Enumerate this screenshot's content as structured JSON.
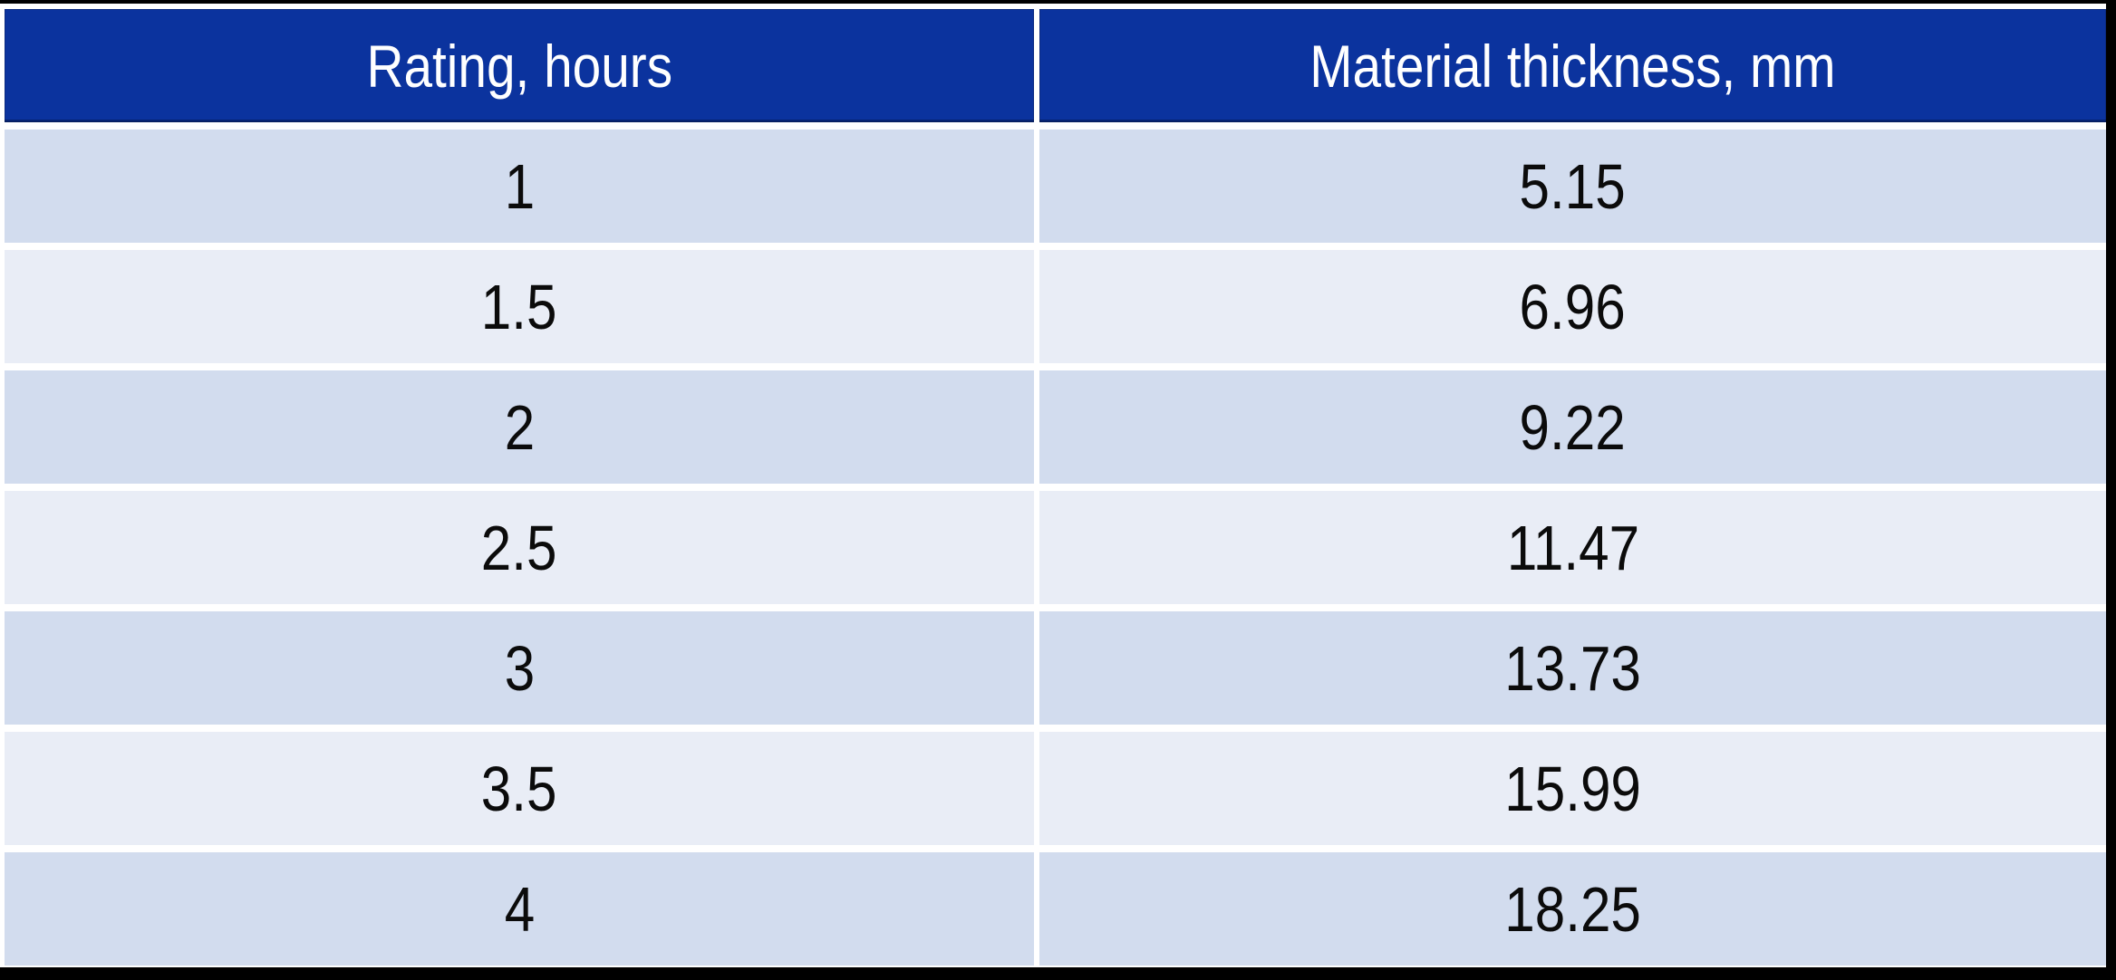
{
  "table": {
    "columns": [
      {
        "id": "rating",
        "label": "Rating, hours"
      },
      {
        "id": "thickness",
        "label": "Material thickness, mm"
      }
    ],
    "rows": [
      {
        "rating": "1",
        "thickness": "5.15"
      },
      {
        "rating": "1.5",
        "thickness": "6.96"
      },
      {
        "rating": "2",
        "thickness": "9.22"
      },
      {
        "rating": "2.5",
        "thickness": "11.47"
      },
      {
        "rating": "3",
        "thickness": "13.73"
      },
      {
        "rating": "3.5",
        "thickness": "15.99"
      },
      {
        "rating": "4",
        "thickness": "18.25"
      }
    ]
  },
  "colors": {
    "header_bg": "#0B339E",
    "header_text": "#FFFFFF",
    "row_odd_bg": "#D2DCEE",
    "row_even_bg": "#E9EDF6",
    "gap": "#FFFFFF",
    "frame": "#000000",
    "page_bg": "#FFFFFF",
    "body_text": "#0B0B0B"
  },
  "chart_data": {
    "type": "table",
    "title": "",
    "columns": [
      "Rating, hours",
      "Material thickness, mm"
    ],
    "rows": [
      [
        1,
        5.15
      ],
      [
        1.5,
        6.96
      ],
      [
        2,
        9.22
      ],
      [
        2.5,
        11.47
      ],
      [
        3,
        13.73
      ],
      [
        3.5,
        15.99
      ],
      [
        4,
        18.25
      ]
    ],
    "layout_hints": {
      "header_style": "dark-blue banner, white centered text",
      "row_banding": "alternating light periwinkle / pale lavender",
      "cell_gaps": "white spacing between all cells",
      "alignment": "all cells center-aligned"
    }
  }
}
